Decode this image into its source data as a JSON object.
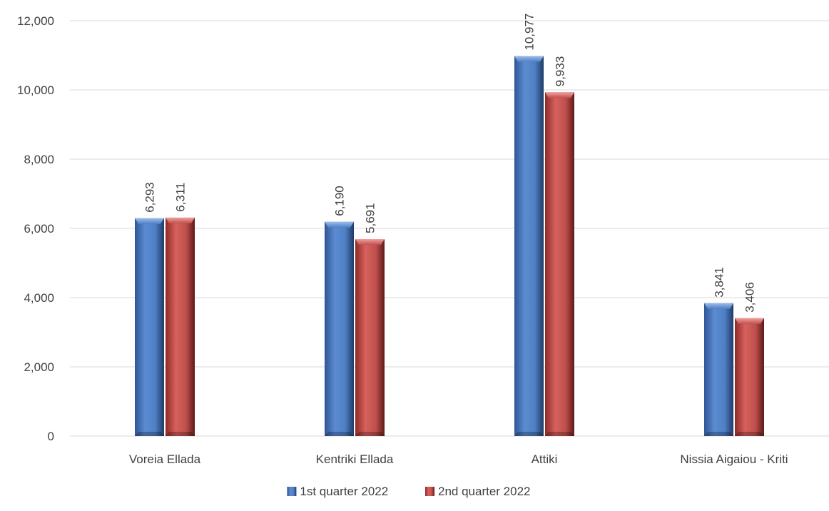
{
  "chart_data": {
    "type": "bar",
    "categories": [
      "Voreia Ellada",
      "Kentriki Ellada",
      "Attiki",
      "Nissia Aigaiou - Kriti"
    ],
    "series": [
      {
        "name": "1st quarter 2022",
        "values": [
          6293,
          6190,
          10977,
          3841
        ],
        "labels": [
          "6,293",
          "6,190",
          "10,977",
          "3,841"
        ],
        "color": "#4F7FC4"
      },
      {
        "name": "2nd quarter 2022",
        "values": [
          6311,
          5691,
          9933,
          3406
        ],
        "labels": [
          "6,311",
          "5,691",
          "9,933",
          "3,406"
        ],
        "color": "#C0504D"
      }
    ],
    "yticks": [
      "0",
      "2,000",
      "4,000",
      "6,000",
      "8,000",
      "10,000",
      "12,000"
    ],
    "ytick_values": [
      0,
      2000,
      4000,
      6000,
      8000,
      10000,
      12000
    ],
    "ylim": [
      0,
      12000
    ],
    "grid": true,
    "legend_position": "bottom"
  }
}
